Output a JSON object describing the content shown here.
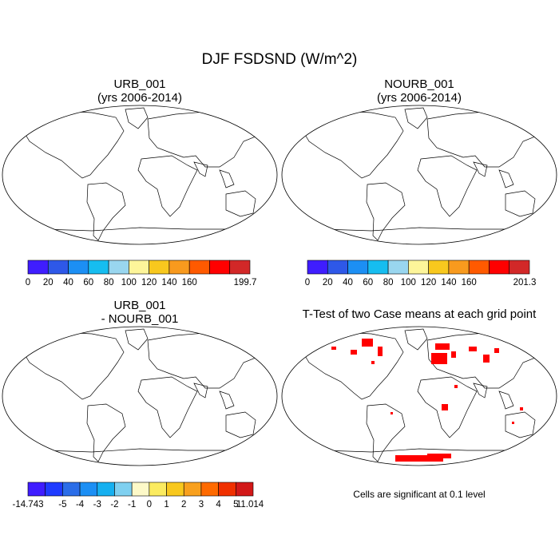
{
  "title": "DJF FSDSND (W/m^2)",
  "panels": [
    {
      "id": "p1",
      "title_line1": "URB_001",
      "title_line2": "(yrs 2006-2014)"
    },
    {
      "id": "p2",
      "title_line1": "NOURB_001",
      "title_line2": "(yrs 2006-2014)"
    },
    {
      "id": "p3",
      "title_line1": "URB_001",
      "title_line2": "- NOURB_001"
    },
    {
      "id": "p4",
      "title": "T-Test of two Case means at each grid point",
      "note": "Cells are significant at 0.1 level"
    }
  ],
  "colorbars": [
    {
      "id": "cb1",
      "labels": [
        "0",
        "20",
        "40",
        "60",
        "80",
        "100",
        "120",
        "140",
        "160",
        "199.7"
      ],
      "colors": [
        "#3f1dff",
        "#2e58e8",
        "#1c8ff4",
        "#16bdf0",
        "#99d6ef",
        "#fdf59a",
        "#f8c81e",
        "#f89a1e",
        "#ff5a00",
        "#ff0000",
        "#d22828"
      ]
    },
    {
      "id": "cb2",
      "labels": [
        "0",
        "20",
        "40",
        "60",
        "80",
        "100",
        "120",
        "140",
        "160",
        "201.3"
      ],
      "colors": [
        "#3f1dff",
        "#2e58e8",
        "#1c8ff4",
        "#16bdf0",
        "#99d6ef",
        "#fdf59a",
        "#f8c81e",
        "#f89a1e",
        "#ff5a00",
        "#ff0000",
        "#d22828"
      ]
    },
    {
      "id": "cb3",
      "labels": [
        "-14.743",
        "-5",
        "-4",
        "-3",
        "-2",
        "-1",
        "0",
        "1",
        "2",
        "3",
        "4",
        "5",
        "11.014"
      ],
      "colors": [
        "#3f1dff",
        "#1f3bff",
        "#2b6de8",
        "#1c8ff4",
        "#16b0f0",
        "#7fd0f0",
        "#fdf9c8",
        "#fbeb60",
        "#f8c81e",
        "#f8a01e",
        "#fe6a00",
        "#f03000",
        "#d21818"
      ]
    }
  ]
}
